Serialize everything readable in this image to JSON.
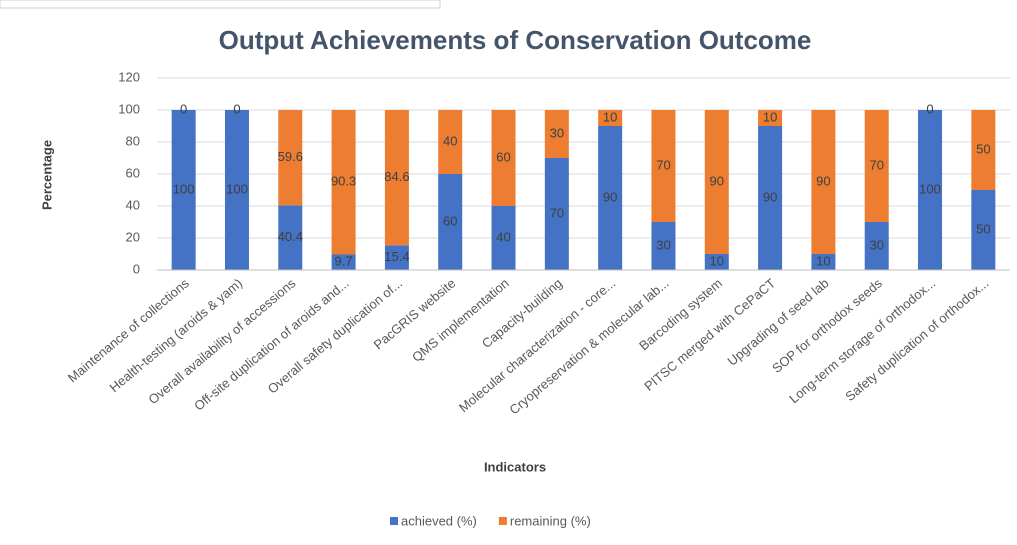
{
  "chart_data": {
    "type": "stacked_bar",
    "title": "Output Achievements of Conservation Outcome",
    "x_label": "Indicators",
    "y_label": "Percentage",
    "categories": [
      "Maintenance of collections",
      "Health-testing (aroids & yam)",
      "Overall availability of accessions",
      "Off-site duplication of aroids and...",
      "Overall safety duplication of...",
      "PacGRIS website",
      "QMS implementation",
      "Capacity-building",
      "Molecular characterization - core...",
      "Cryopreservation & molecular lab...",
      "Barcoding system",
      "PITSC merged with CePaCT",
      "Upgrading of seed lab",
      "SOP for orthodox seeds",
      "Long-term storage of orthodox...",
      "Safety duplication of orthodox..."
    ],
    "series": [
      {
        "name": "achieved (%)",
        "color": "#4472c4",
        "values": [
          100,
          100,
          40.4,
          9.7,
          15.4,
          60,
          40,
          70,
          90,
          30,
          10,
          90,
          10,
          30,
          100,
          50
        ]
      },
      {
        "name": "remaining (%)",
        "color": "#ed7d31",
        "values": [
          0,
          0,
          59.6,
          90.3,
          84.6,
          40,
          60,
          30,
          10,
          70,
          90,
          10,
          90,
          70,
          0,
          50
        ]
      }
    ],
    "ylim": [
      0,
      120
    ],
    "yticks": [
      0,
      20,
      40,
      60,
      80,
      100,
      120
    ],
    "grid": true,
    "legend": "bottom"
  }
}
